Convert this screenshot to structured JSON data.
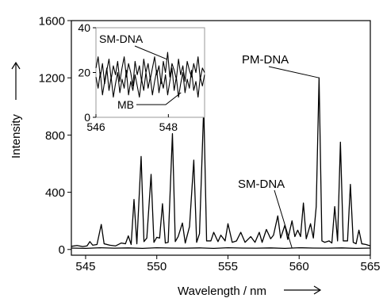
{
  "chart_data": [
    {
      "id": "main",
      "type": "line",
      "title": "",
      "xlabel": "Wavelength / nm",
      "ylabel": "Intensity",
      "xlim": [
        544,
        565
      ],
      "ylim": [
        -40,
        1600
      ],
      "xticks": [
        545,
        550,
        555,
        560,
        565
      ],
      "yticks": [
        0,
        400,
        800,
        1200,
        1600
      ],
      "grid": false,
      "legend": "none",
      "annotations": [
        {
          "text": "PM-DNA",
          "target_x": 561.4,
          "target_y": 1200
        },
        {
          "text": "SM-DNA",
          "target_x": 559.5,
          "target_y": 10
        }
      ],
      "series": [
        {
          "name": "PM-DNA",
          "color": "#000000",
          "points": [
            [
              544.0,
              22
            ],
            [
              544.4,
              28
            ],
            [
              544.8,
              20
            ],
            [
              545.1,
              25
            ],
            [
              545.3,
              55
            ],
            [
              545.5,
              30
            ],
            [
              545.8,
              35
            ],
            [
              546.1,
              175
            ],
            [
              546.3,
              40
            ],
            [
              546.7,
              30
            ],
            [
              547.1,
              25
            ],
            [
              547.5,
              45
            ],
            [
              547.8,
              40
            ],
            [
              548.0,
              95
            ],
            [
              548.2,
              35
            ],
            [
              548.4,
              350
            ],
            [
              548.6,
              40
            ],
            [
              548.9,
              650
            ],
            [
              549.1,
              55
            ],
            [
              549.3,
              80
            ],
            [
              549.6,
              525
            ],
            [
              549.8,
              50
            ],
            [
              550.0,
              85
            ],
            [
              550.2,
              80
            ],
            [
              550.4,
              320
            ],
            [
              550.6,
              45
            ],
            [
              550.8,
              50
            ],
            [
              551.1,
              810
            ],
            [
              551.3,
              55
            ],
            [
              551.5,
              90
            ],
            [
              551.8,
              185
            ],
            [
              552.0,
              45
            ],
            [
              552.3,
              160
            ],
            [
              552.6,
              625
            ],
            [
              552.8,
              50
            ],
            [
              553.0,
              110
            ],
            [
              553.3,
              1000
            ],
            [
              553.5,
              60
            ],
            [
              553.8,
              60
            ],
            [
              554.0,
              120
            ],
            [
              554.3,
              55
            ],
            [
              554.5,
              100
            ],
            [
              554.8,
              60
            ],
            [
              555.0,
              180
            ],
            [
              555.3,
              50
            ],
            [
              555.6,
              60
            ],
            [
              555.9,
              120
            ],
            [
              556.2,
              50
            ],
            [
              556.4,
              70
            ],
            [
              556.6,
              90
            ],
            [
              556.9,
              50
            ],
            [
              557.2,
              120
            ],
            [
              557.4,
              50
            ],
            [
              557.7,
              140
            ],
            [
              558.0,
              75
            ],
            [
              558.2,
              100
            ],
            [
              558.5,
              235
            ],
            [
              558.7,
              80
            ],
            [
              559.0,
              170
            ],
            [
              559.2,
              70
            ],
            [
              559.5,
              200
            ],
            [
              559.7,
              90
            ],
            [
              559.9,
              135
            ],
            [
              560.1,
              90
            ],
            [
              560.3,
              325
            ],
            [
              560.5,
              75
            ],
            [
              560.8,
              180
            ],
            [
              561.0,
              80
            ],
            [
              561.2,
              300
            ],
            [
              561.4,
              1200
            ],
            [
              561.6,
              60
            ],
            [
              561.8,
              50
            ],
            [
              562.1,
              60
            ],
            [
              562.3,
              45
            ],
            [
              562.5,
              300
            ],
            [
              562.7,
              60
            ],
            [
              562.9,
              750
            ],
            [
              563.1,
              60
            ],
            [
              563.4,
              60
            ],
            [
              563.6,
              455
            ],
            [
              563.8,
              50
            ],
            [
              564.0,
              40
            ],
            [
              564.2,
              135
            ],
            [
              564.4,
              40
            ],
            [
              564.7,
              35
            ],
            [
              565.0,
              25
            ]
          ]
        },
        {
          "name": "SM-DNA",
          "color": "#000000",
          "points": [
            [
              544.0,
              10
            ],
            [
              545.0,
              8
            ],
            [
              546.0,
              12
            ],
            [
              547.0,
              9
            ],
            [
              548.0,
              11
            ],
            [
              549.0,
              8
            ],
            [
              550.0,
              12
            ],
            [
              551.0,
              10
            ],
            [
              552.0,
              9
            ],
            [
              553.0,
              11
            ],
            [
              554.0,
              8
            ],
            [
              555.0,
              12
            ],
            [
              556.0,
              10
            ],
            [
              557.0,
              9
            ],
            [
              558.0,
              11
            ],
            [
              559.0,
              8
            ],
            [
              560.0,
              12
            ],
            [
              561.0,
              10
            ],
            [
              562.0,
              9
            ],
            [
              563.0,
              11
            ],
            [
              564.0,
              8
            ],
            [
              565.0,
              10
            ]
          ]
        }
      ]
    },
    {
      "id": "inset",
      "type": "line",
      "title": "",
      "xlabel": "",
      "ylabel": "",
      "xlim": [
        546,
        549
      ],
      "ylim": [
        0,
        40
      ],
      "xticks": [
        546,
        548
      ],
      "yticks": [
        0,
        20,
        40
      ],
      "grid": false,
      "legend": "none",
      "annotations": [
        {
          "text": "SM-DNA",
          "target_x": 547.95,
          "target_y": 26
        },
        {
          "text": "MB",
          "target_x": 548.35,
          "target_y": 11
        }
      ],
      "series": [
        {
          "name": "SM-DNA",
          "color": "#000000",
          "points": [
            [
              546.0,
              22
            ],
            [
              546.06,
              27
            ],
            [
              546.12,
              18
            ],
            [
              546.18,
              24
            ],
            [
              546.24,
              15
            ],
            [
              546.3,
              21
            ],
            [
              546.36,
              26
            ],
            [
              546.42,
              17
            ],
            [
              546.48,
              23
            ],
            [
              546.54,
              19
            ],
            [
              546.6,
              25
            ],
            [
              546.66,
              16
            ],
            [
              546.72,
              22
            ],
            [
              546.78,
              27
            ],
            [
              546.84,
              18
            ],
            [
              546.9,
              24
            ],
            [
              546.96,
              20
            ],
            [
              547.02,
              14
            ],
            [
              547.08,
              25
            ],
            [
              547.14,
              19
            ],
            [
              547.2,
              23
            ],
            [
              547.26,
              16
            ],
            [
              547.32,
              26
            ],
            [
              547.38,
              20
            ],
            [
              547.44,
              24
            ],
            [
              547.5,
              17
            ],
            [
              547.56,
              22
            ],
            [
              547.62,
              27
            ],
            [
              547.68,
              19
            ],
            [
              547.74,
              23
            ],
            [
              547.8,
              15
            ],
            [
              547.86,
              25
            ],
            [
              547.92,
              20
            ],
            [
              547.98,
              29
            ],
            [
              548.04,
              18
            ],
            [
              548.1,
              24
            ],
            [
              548.16,
              21
            ],
            [
              548.22,
              17
            ],
            [
              548.28,
              26
            ],
            [
              548.34,
              19
            ],
            [
              548.4,
              23
            ],
            [
              548.46,
              16
            ],
            [
              548.52,
              25
            ],
            [
              548.58,
              21
            ],
            [
              548.64,
              18
            ],
            [
              548.7,
              24
            ],
            [
              548.76,
              20
            ],
            [
              548.82,
              27
            ],
            [
              548.88,
              17
            ],
            [
              548.94,
              22
            ],
            [
              549.0,
              20
            ]
          ]
        },
        {
          "name": "MB",
          "color": "#000000",
          "points": [
            [
              546.0,
              18
            ],
            [
              546.06,
              13
            ],
            [
              546.12,
              20
            ],
            [
              546.18,
              10
            ],
            [
              546.24,
              16
            ],
            [
              546.3,
              22
            ],
            [
              546.36,
              12
            ],
            [
              546.42,
              18
            ],
            [
              546.48,
              9
            ],
            [
              546.54,
              15
            ],
            [
              546.6,
              20
            ],
            [
              546.66,
              11
            ],
            [
              546.72,
              17
            ],
            [
              546.78,
              13
            ],
            [
              546.84,
              21
            ],
            [
              546.9,
              10
            ],
            [
              546.96,
              16
            ],
            [
              547.02,
              12
            ],
            [
              547.08,
              19
            ],
            [
              547.14,
              14
            ],
            [
              547.2,
              9
            ],
            [
              547.26,
              17
            ],
            [
              547.32,
              12
            ],
            [
              547.38,
              20
            ],
            [
              547.44,
              13
            ],
            [
              547.5,
              18
            ],
            [
              547.56,
              10
            ],
            [
              547.62,
              16
            ],
            [
              547.68,
              21
            ],
            [
              547.74,
              11
            ],
            [
              547.8,
              17
            ],
            [
              547.86,
              13
            ],
            [
              547.92,
              19
            ],
            [
              547.98,
              10
            ],
            [
              548.04,
              16
            ],
            [
              548.1,
              22
            ],
            [
              548.16,
              12
            ],
            [
              548.22,
              18
            ],
            [
              548.28,
              9
            ],
            [
              548.34,
              15
            ],
            [
              548.4,
              20
            ],
            [
              548.46,
              11
            ],
            [
              548.52,
              17
            ],
            [
              548.58,
              13
            ],
            [
              548.64,
              21
            ],
            [
              548.7,
              12
            ],
            [
              548.76,
              16
            ],
            [
              548.82,
              9
            ],
            [
              548.88,
              18
            ],
            [
              548.94,
              14
            ],
            [
              549.0,
              19
            ]
          ]
        }
      ]
    }
  ]
}
